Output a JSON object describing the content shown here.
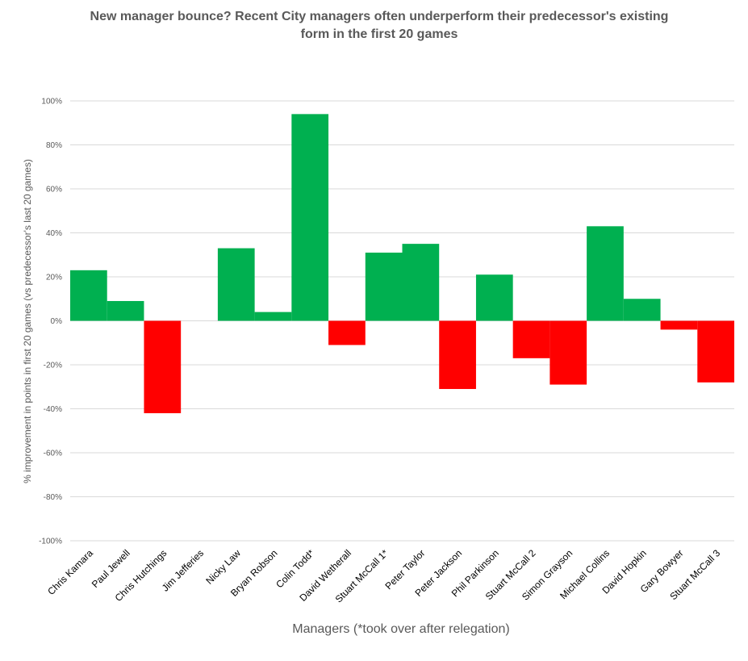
{
  "chart_data": {
    "type": "bar",
    "title_line1": "New manager bounce? Recent City managers often underperform their predecessor's existing",
    "title_line2": "form in the first 20 games",
    "xlabel": "Managers (*took over after relegation)",
    "ylabel": "% improvement in points in first 20 games (vs predecessor's last 20 games)",
    "ylim": [
      -100,
      100
    ],
    "yticks": [
      -100,
      -80,
      -60,
      -40,
      -20,
      0,
      20,
      40,
      60,
      80,
      100
    ],
    "ytick_labels": [
      "-100%",
      "-80%",
      "-60%",
      "-40%",
      "-20%",
      "0%",
      "20%",
      "40%",
      "60%",
      "80%",
      "100%"
    ],
    "grid": true,
    "legend": "none",
    "categories": [
      "Chris Kamara",
      "Paul Jewell",
      "Chris Hutchings",
      "Jim Jefferies",
      "Nicky Law",
      "Bryan Robson",
      "Colin Todd*",
      "David Wetherall",
      "Stuart McCall 1*",
      "Peter Taylor",
      "Peter Jackson",
      "Phil Parkinson",
      "Stuart McCall 2",
      "Simon Grayson",
      "Michael Collins",
      "David Hopkin",
      "Gary Bowyer",
      "Stuart McCall 3"
    ],
    "values": [
      23,
      9,
      -42,
      0,
      33,
      4,
      94,
      -11,
      31,
      35,
      -31,
      21,
      -17,
      -29,
      43,
      10,
      -4,
      -28
    ],
    "positive_color": "#00b050",
    "negative_color": "#ff0000"
  }
}
